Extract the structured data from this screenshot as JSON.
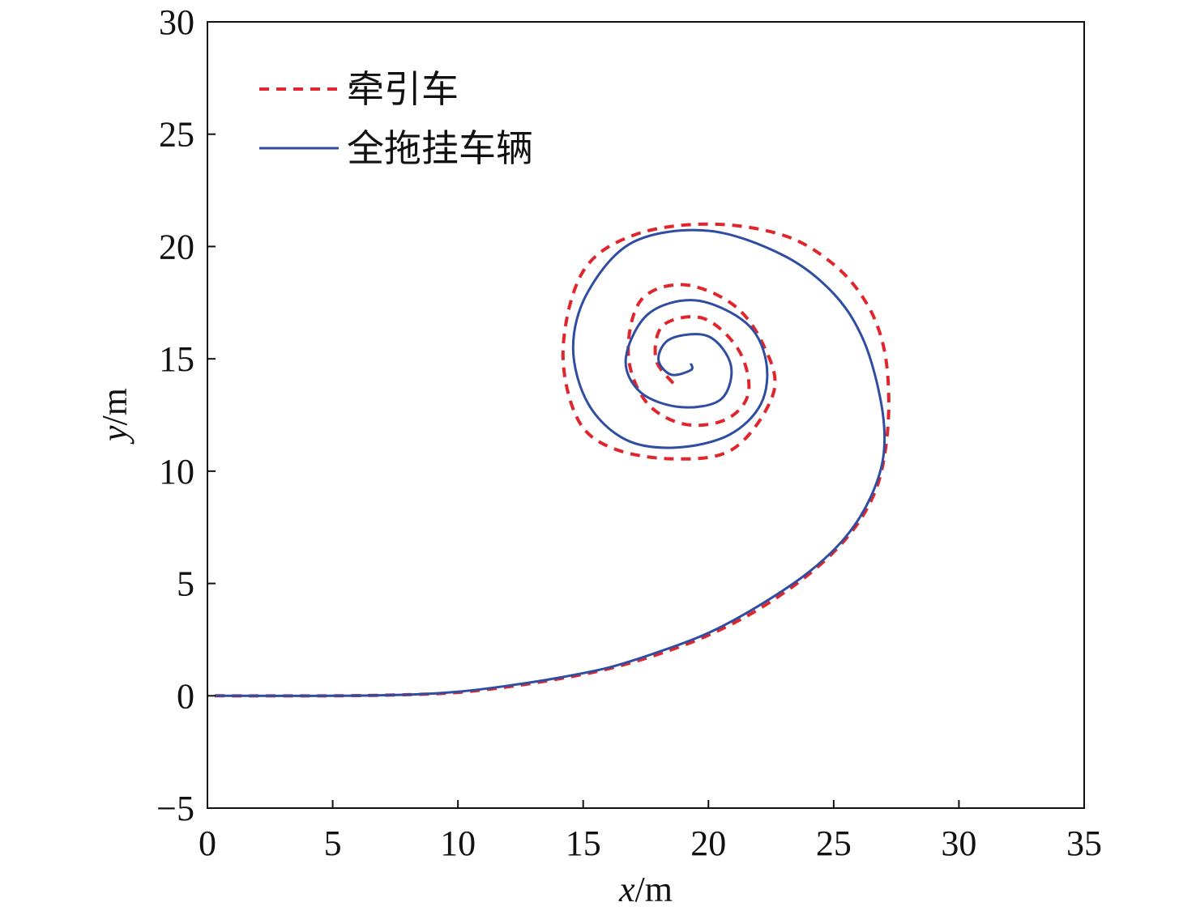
{
  "chart_data": {
    "type": "line",
    "xlabel": {
      "var": "x",
      "unit": "/m"
    },
    "ylabel": {
      "var": "y",
      "unit": "/m"
    },
    "xlim": [
      0,
      35
    ],
    "ylim": [
      -5,
      30
    ],
    "xticks": [
      0,
      5,
      10,
      15,
      20,
      25,
      30,
      35
    ],
    "yticks": [
      -5,
      0,
      5,
      10,
      15,
      20,
      25,
      30
    ],
    "xtick_labels": [
      "0",
      "5",
      "10",
      "15",
      "20",
      "25",
      "30",
      "35"
    ],
    "ytick_labels": [
      "−5",
      "0",
      "5",
      "10",
      "15",
      "20",
      "25",
      "30"
    ],
    "grid": false,
    "legend_position": "top-left",
    "series": [
      {
        "name": "牵引车",
        "color": "#e0262c",
        "dash": true,
        "x": [
          0.3,
          5.0,
          8.0,
          10.0,
          12.0,
          14.0,
          16.0,
          18.0,
          20.0,
          22.0,
          24.0,
          25.5,
          26.5,
          27.0,
          27.2,
          27.0,
          26.3,
          25.0,
          23.0,
          20.0,
          17.0,
          15.0,
          14.2,
          14.7,
          16.0,
          18.5,
          21.0,
          22.6,
          22.2,
          21.0,
          19.0,
          17.3,
          16.8,
          17.5,
          19.0,
          20.7,
          21.6,
          21.2,
          19.8,
          18.2,
          17.9,
          18.6
        ],
        "y": [
          0.0,
          0.0,
          0.05,
          0.15,
          0.4,
          0.75,
          1.2,
          1.85,
          2.7,
          3.85,
          5.4,
          7.0,
          8.7,
          10.5,
          13.0,
          15.5,
          17.5,
          19.2,
          20.5,
          21.0,
          20.5,
          18.9,
          15.5,
          12.5,
          11.1,
          10.55,
          11.0,
          13.5,
          15.6,
          17.4,
          18.3,
          17.6,
          15.2,
          13.1,
          12.1,
          12.3,
          13.5,
          15.4,
          16.8,
          16.5,
          15.0,
          13.9
        ]
      },
      {
        "name": "全拖挂车辆",
        "color": "#2f4ea1",
        "dash": false,
        "x": [
          0.3,
          5.0,
          8.0,
          10.0,
          12.0,
          14.0,
          16.0,
          18.0,
          20.0,
          22.0,
          24.0,
          25.5,
          26.5,
          27.0,
          26.9,
          26.2,
          25.0,
          23.0,
          20.0,
          17.0,
          15.2,
          14.6,
          15.2,
          16.7,
          18.7,
          20.8,
          22.1,
          22.3,
          21.5,
          19.5,
          17.6,
          16.7,
          17.3,
          18.9,
          20.5,
          20.9,
          20.0,
          18.5,
          18.0,
          18.5,
          19.3,
          19.3
        ],
        "y": [
          0.0,
          0.0,
          0.05,
          0.18,
          0.45,
          0.8,
          1.25,
          1.95,
          2.8,
          4.0,
          5.5,
          7.1,
          8.9,
          10.8,
          13.0,
          15.8,
          17.9,
          19.6,
          20.7,
          20.2,
          18.0,
          15.5,
          13.0,
          11.4,
          11.05,
          11.6,
          13.0,
          14.9,
          16.6,
          17.6,
          17.0,
          15.0,
          13.5,
          12.85,
          13.2,
          14.7,
          16.0,
          15.9,
          15.0,
          14.3,
          14.5,
          14.8
        ]
      }
    ]
  }
}
